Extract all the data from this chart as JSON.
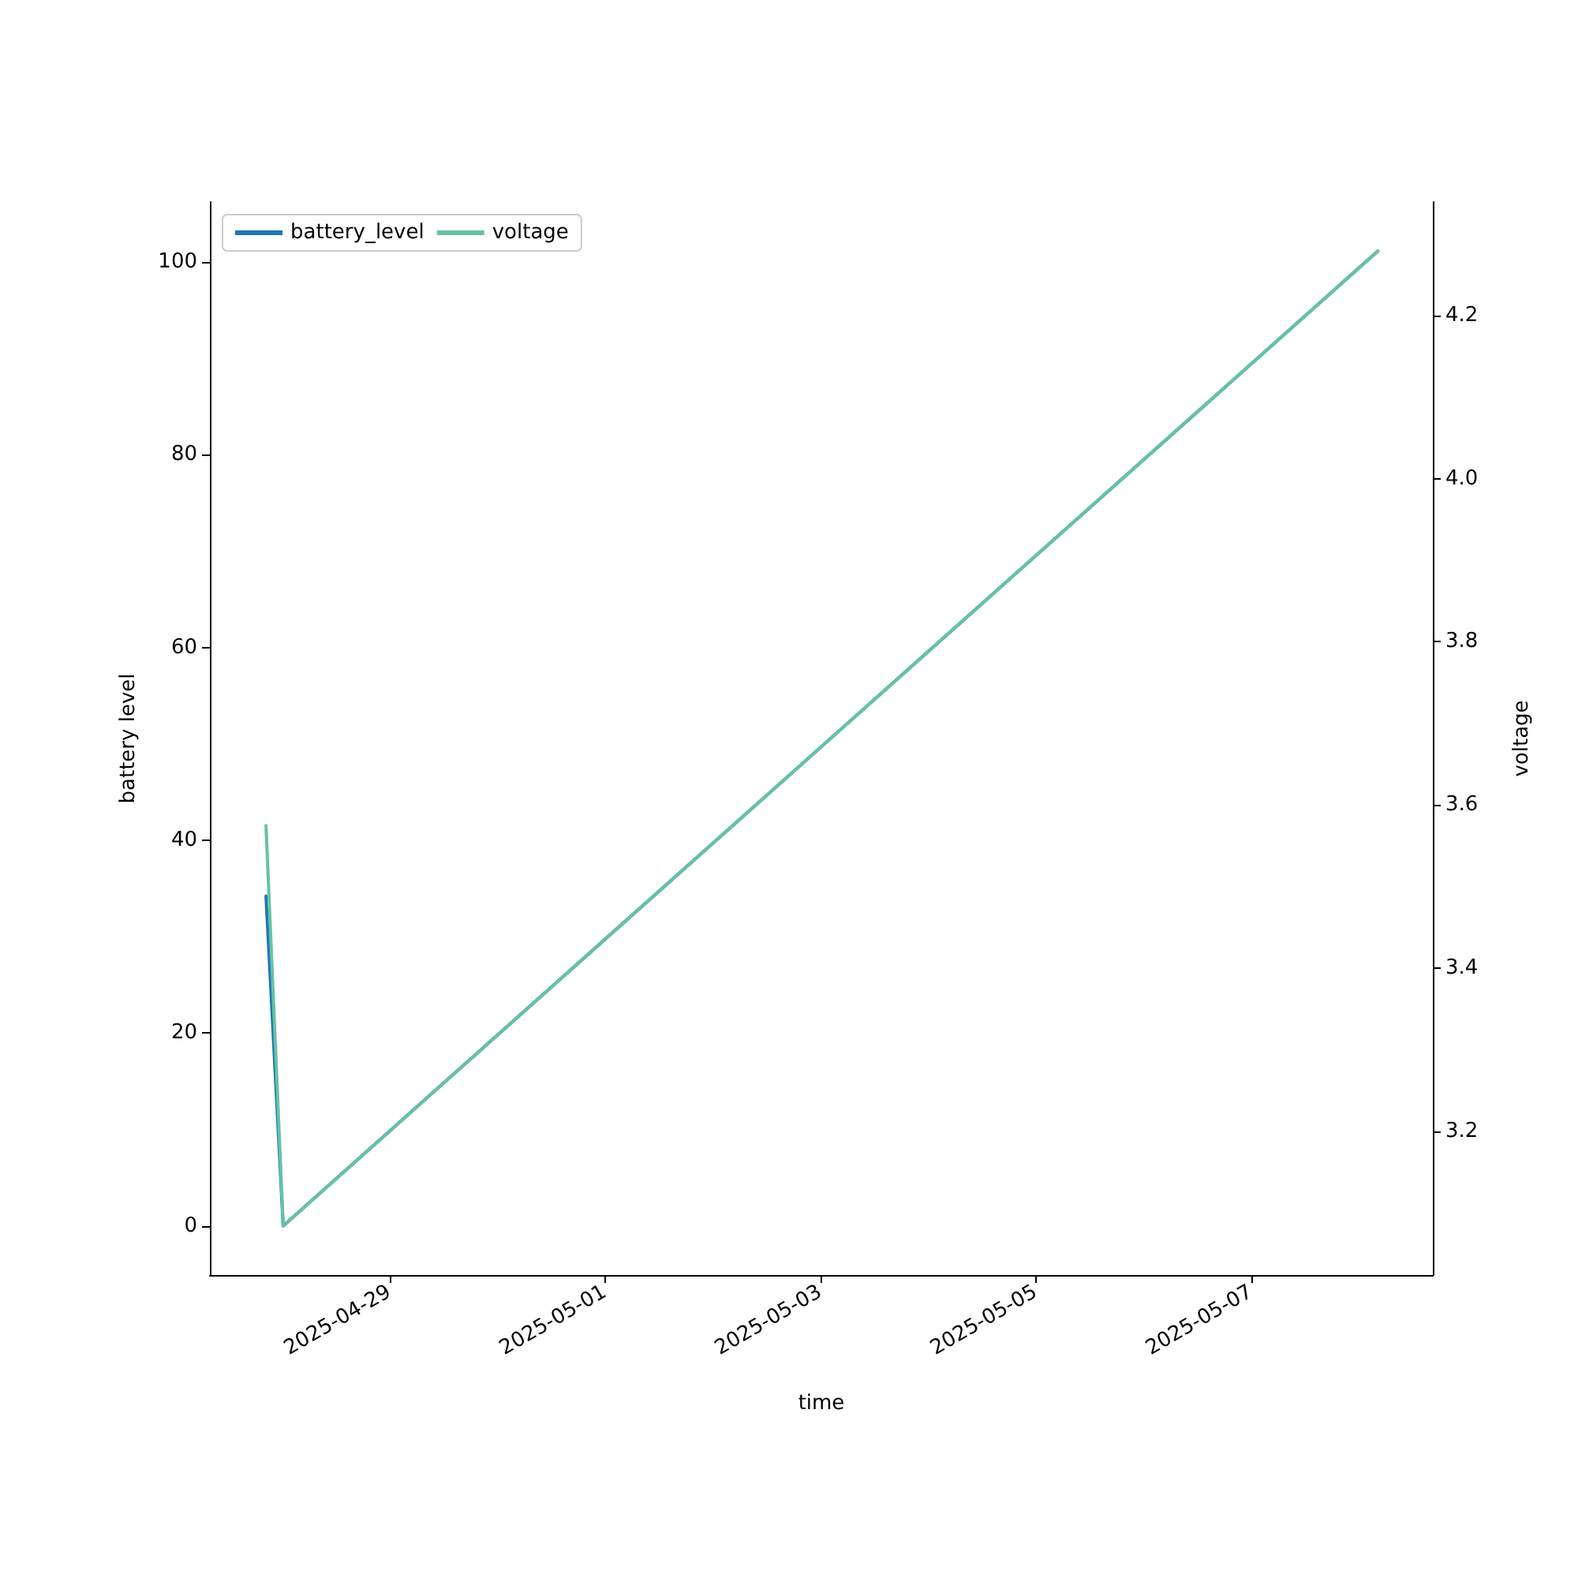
{
  "chart_data": {
    "type": "line",
    "xlabel": "time",
    "ylabel": "battery level",
    "y2label": "voltage",
    "xlim": [
      "2025-04-27T08:00",
      "2025-05-08T16:30"
    ],
    "xticks": [
      "2025-04-29",
      "2025-05-01",
      "2025-05-03",
      "2025-05-05",
      "2025-05-07"
    ],
    "ylim": [
      -5.1,
      106.2
    ],
    "yticks": [
      0,
      20,
      40,
      60,
      80,
      100
    ],
    "y2lim": [
      3.024,
      4.339
    ],
    "y2ticks": [
      3.2,
      3.4,
      3.6,
      3.8,
      {
        "value": 4,
        "label": "4.0"
      },
      4.2
    ],
    "series": [
      {
        "name": "battery_level",
        "color": "#1f77b4",
        "x": [
          "2025-04-27T20:30",
          "2025-04-28T00:20",
          "2025-05-08T04:15"
        ],
        "values": [
          34.2,
          0,
          101.1
        ]
      },
      {
        "name": "voltage",
        "color": "#66c2a5",
        "axis": "y2",
        "x": [
          "2025-04-27T20:30",
          "2025-04-28T00:20",
          "2025-05-08T04:15"
        ],
        "values": [
          3.575,
          3.084,
          4.279
        ]
      }
    ],
    "legend": "top left",
    "grid": false
  }
}
